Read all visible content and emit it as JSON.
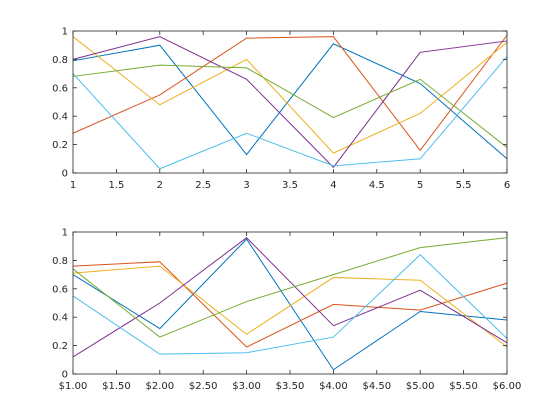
{
  "chart_data": [
    {
      "type": "line",
      "xlim": [
        1,
        6
      ],
      "ylim": [
        0,
        1
      ],
      "grid": false,
      "x_ticks": [
        "1",
        "1.5",
        "2",
        "2.5",
        "3",
        "3.5",
        "4",
        "4.5",
        "5",
        "5.5",
        "6"
      ],
      "y_ticks": [
        "0",
        "0.2",
        "0.4",
        "0.6",
        "0.8",
        "1"
      ],
      "x": [
        1,
        2,
        3,
        4,
        5,
        6
      ],
      "series": [
        {
          "color": "#0072BD",
          "values": [
            0.79,
            0.9,
            0.13,
            0.91,
            0.63,
            0.1
          ]
        },
        {
          "color": "#D95319",
          "values": [
            0.28,
            0.55,
            0.95,
            0.96,
            0.16,
            0.97
          ]
        },
        {
          "color": "#EDB120",
          "values": [
            0.96,
            0.48,
            0.8,
            0.14,
            0.42,
            0.92
          ]
        },
        {
          "color": "#7E2F8E",
          "values": [
            0.8,
            0.96,
            0.66,
            0.04,
            0.85,
            0.93
          ]
        },
        {
          "color": "#77AC30",
          "values": [
            0.68,
            0.76,
            0.74,
            0.39,
            0.66,
            0.18
          ]
        },
        {
          "color": "#4DBEEE",
          "values": [
            0.7,
            0.03,
            0.28,
            0.05,
            0.1,
            0.82
          ]
        }
      ]
    },
    {
      "type": "line",
      "xlim": [
        1,
        6
      ],
      "ylim": [
        0,
        1
      ],
      "grid": false,
      "x_ticks": [
        "$1.00",
        "$1.50",
        "$2.00",
        "$2.50",
        "$3.00",
        "$3.50",
        "$4.00",
        "$4.50",
        "$5.00",
        "$5.50",
        "$6.00"
      ],
      "y_ticks": [
        "0",
        "0.2",
        "0.4",
        "0.6",
        "0.8",
        "1"
      ],
      "x": [
        1,
        2,
        3,
        4,
        5,
        6
      ],
      "series": [
        {
          "color": "#0072BD",
          "values": [
            0.7,
            0.32,
            0.95,
            0.03,
            0.44,
            0.38
          ]
        },
        {
          "color": "#D95319",
          "values": [
            0.76,
            0.79,
            0.19,
            0.49,
            0.45,
            0.64
          ]
        },
        {
          "color": "#EDB120",
          "values": [
            0.71,
            0.76,
            0.28,
            0.68,
            0.66,
            0.19
          ]
        },
        {
          "color": "#7E2F8E",
          "values": [
            0.12,
            0.5,
            0.96,
            0.34,
            0.59,
            0.22
          ]
        },
        {
          "color": "#77AC30",
          "values": [
            0.74,
            0.26,
            0.51,
            0.7,
            0.89,
            0.96
          ]
        },
        {
          "color": "#4DBEEE",
          "values": [
            0.55,
            0.14,
            0.15,
            0.26,
            0.84,
            0.25
          ]
        }
      ]
    }
  ]
}
